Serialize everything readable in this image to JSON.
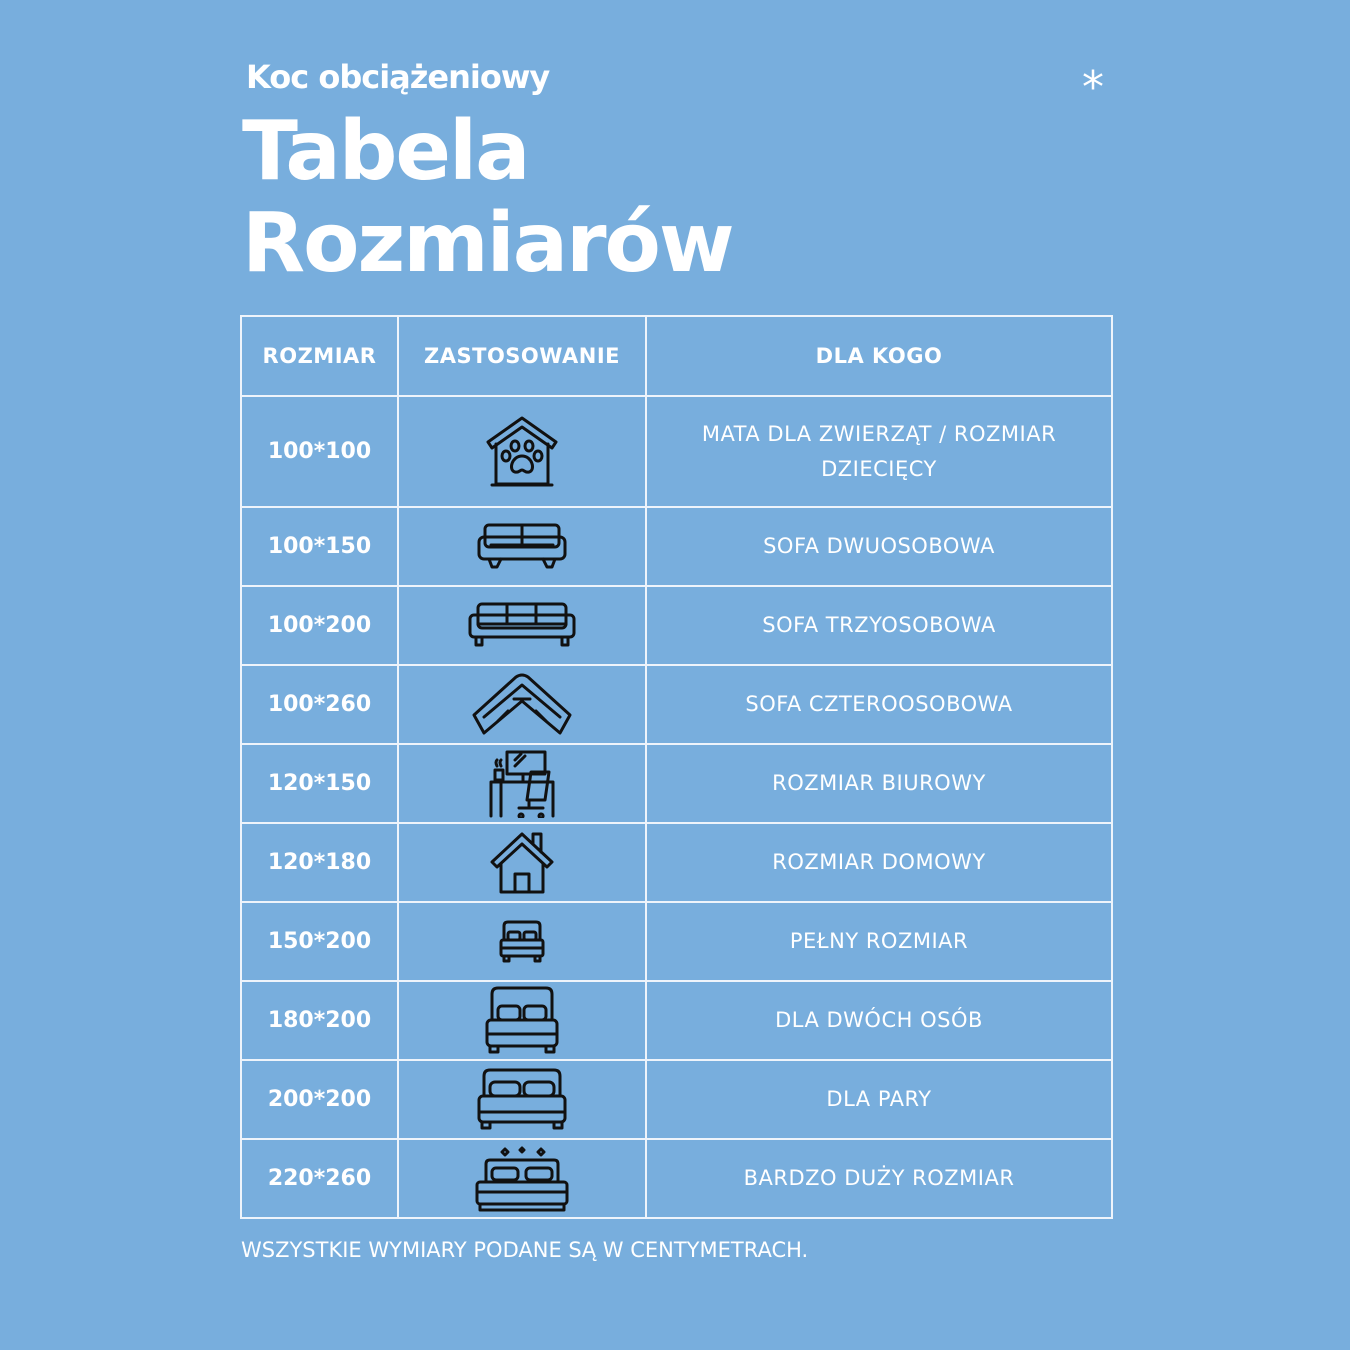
{
  "header": {
    "subtitle": "Koc obciążeniowy",
    "title_line1": "Tabela",
    "title_line2": "Rozmiarów",
    "asterisk": "*"
  },
  "table": {
    "columns": [
      "ROZMIAR",
      "ZASTOSOWANIE",
      "DLA KOGO"
    ],
    "rows": [
      {
        "size": "100*100",
        "icon": "pet-house-icon",
        "for": "MATA DLA ZWIERZĄT / ROZMIAR DZIECIĘCY"
      },
      {
        "size": "100*150",
        "icon": "two-seat-sofa-icon",
        "for": "SOFA DWUOSOBOWA"
      },
      {
        "size": "100*200",
        "icon": "three-seat-sofa-icon",
        "for": "SOFA TRZYOSOBOWA"
      },
      {
        "size": "100*260",
        "icon": "corner-sofa-icon",
        "for": "SOFA CZTEROOSOBOWA"
      },
      {
        "size": "120*150",
        "icon": "office-desk-icon",
        "for": "ROZMIAR BIUROWY"
      },
      {
        "size": "120*180",
        "icon": "house-icon",
        "for": "ROZMIAR DOMOWY"
      },
      {
        "size": "150*200",
        "icon": "small-bed-icon",
        "for": "PEŁNY ROZMIAR"
      },
      {
        "size": "180*200",
        "icon": "double-bed-icon",
        "for": "DLA DWÓCH OSÓB"
      },
      {
        "size": "200*200",
        "icon": "wide-bed-icon",
        "for": "DLA PARY"
      },
      {
        "size": "220*260",
        "icon": "luxury-bed-icon",
        "for": "BARDZO DUŻY ROZMIAR"
      }
    ]
  },
  "footer": {
    "note": "WSZYSTKIE WYMIARY PODANE SĄ W CENTYMETRACH."
  },
  "colors": {
    "background": "#78aedd",
    "text": "#ffffff",
    "icon": "#111111"
  }
}
